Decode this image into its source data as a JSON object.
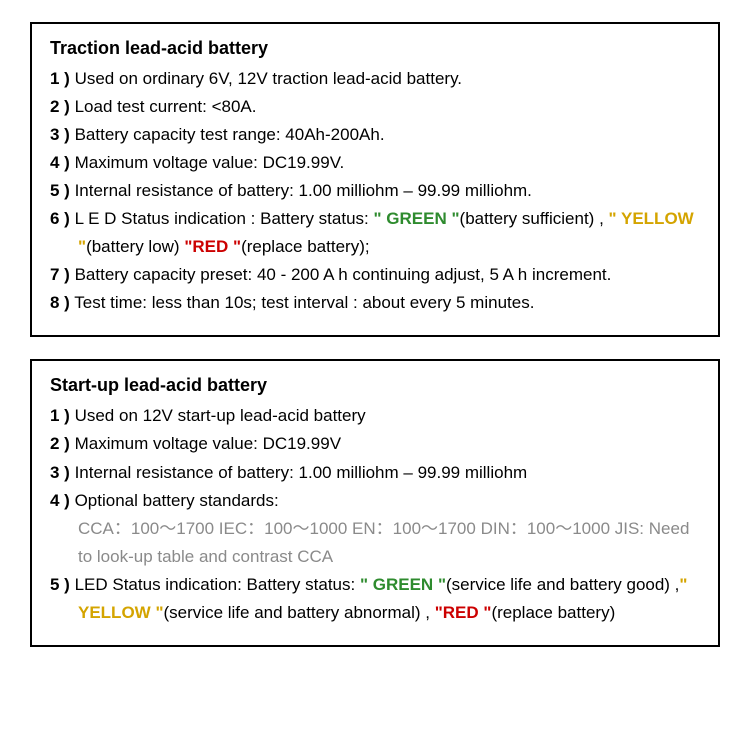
{
  "colors": {
    "green": "#2e8b2e",
    "yellow": "#d4a400",
    "red": "#cc0000",
    "gray": "#8a8a8a",
    "border": "#000000",
    "background": "#ffffff"
  },
  "panel1": {
    "title": "Traction lead-acid battery",
    "items": {
      "n1": "1 )",
      "t1": "Used on ordinary 6V, 12V traction lead-acid battery.",
      "n2": "2 )",
      "t2": "Load test current: <80A.",
      "n3": "3 )",
      "t3": "Battery capacity test range: 40Ah-200Ah.",
      "n4": "4 )",
      "t4": "Maximum voltage value: DC19.99V.",
      "n5": "5 )",
      "t5": "Internal resistance of battery: 1.00 milliohm – 99.99 milliohm.",
      "n6": "6 )",
      "t6a": "L E D Status indication : Battery status: ",
      "green_q1": "\" ",
      "green": "GREEN",
      "green_q2": " \"",
      "t6b": "(battery sufficient) , ",
      "yel_q1": "\" ",
      "yellow": "YELLOW",
      "yel_q2": " \"",
      "t6c": "(battery low)  ",
      "red_q1": "\"",
      "red": "RED",
      "red_q2": " \"",
      "t6d": "(replace battery);",
      "n7": "7 )",
      "t7": "Battery capacity preset: 40 - 200 A h continuing adjust, 5 A h increment.",
      "n8": "8 )",
      "t8": "Test time: less than 10s; test interval : about every 5 minutes."
    }
  },
  "panel2": {
    "title": "Start-up lead-acid battery",
    "items": {
      "n1": "1 )",
      "t1": "Used on 12V start-up lead-acid battery",
      "n2": "2 )",
      "t2": "Maximum voltage value: DC19.99V",
      "n3": "3 )",
      "t3": "Internal resistance of battery: 1.00 milliohm – 99.99 milliohm",
      "n4": "4 )",
      "t4": "Optional battery standards:",
      "std": "CCA：100～1700     IEC：100～1000     EN：100～1700     DIN：100～1000       JIS: Need to look-up table and contrast CCA",
      "n5": "5 )",
      "t5a": "LED Status indication: Battery status: ",
      "green_q1": "\" ",
      "green": "GREEN",
      "green_q2": " \"",
      "t5b": "(service life and battery good) ,",
      "yel_q1": "\" ",
      "yellow": "YELLOW",
      "yel_q2": " \"",
      "t5c": "(service life and battery abnormal) ,  ",
      "red_q1": "\"",
      "red": "RED",
      "red_q2": " \"",
      "t5d": "(replace battery)"
    }
  }
}
